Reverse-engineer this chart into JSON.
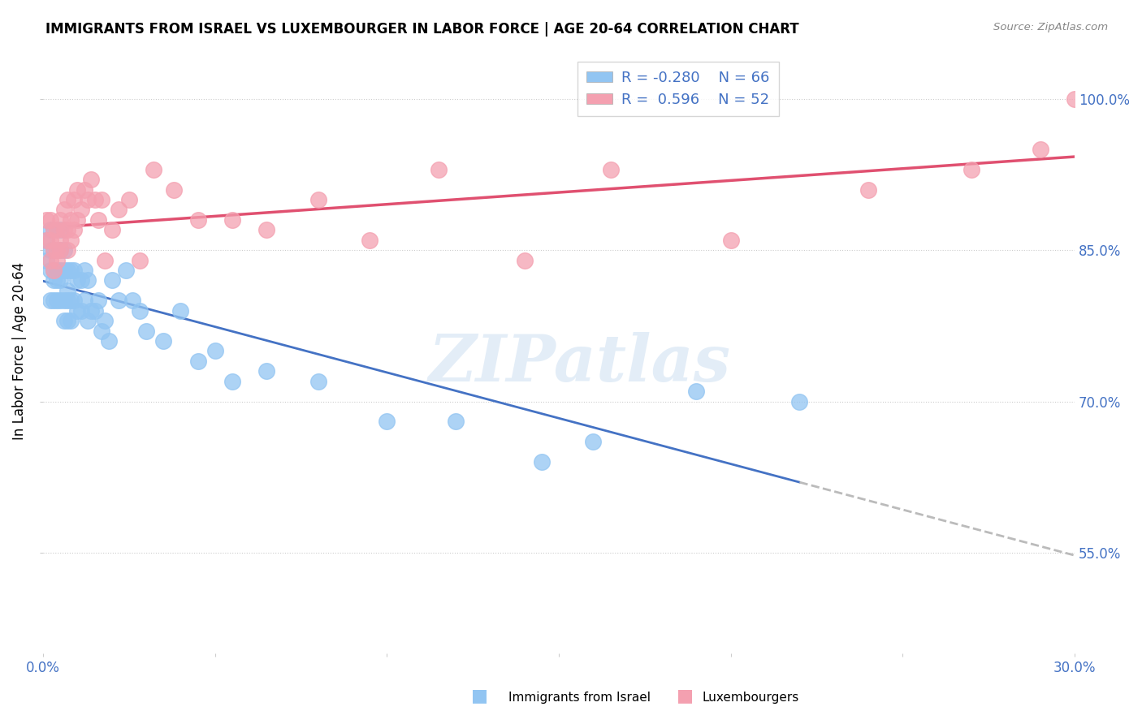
{
  "title": "IMMIGRANTS FROM ISRAEL VS LUXEMBOURGER IN LABOR FORCE | AGE 20-64 CORRELATION CHART",
  "source": "Source: ZipAtlas.com",
  "ylabel": "In Labor Force | Age 20-64",
  "xlim": [
    0.0,
    0.3
  ],
  "ylim": [
    0.45,
    1.05
  ],
  "yticks": [
    0.55,
    0.7,
    0.85,
    1.0
  ],
  "ytick_labels": [
    "55.0%",
    "70.0%",
    "85.0%",
    "100.0%"
  ],
  "xticks": [
    0.0,
    0.05,
    0.1,
    0.15,
    0.2,
    0.25,
    0.3
  ],
  "xtick_labels": [
    "0.0%",
    "",
    "",
    "",
    "",
    "",
    "30.0%"
  ],
  "legend_israel_r": "-0.280",
  "legend_israel_n": "66",
  "legend_lux_r": "0.596",
  "legend_lux_n": "52",
  "color_israel": "#92C5F2",
  "color_lux": "#F4A0B0",
  "color_israel_line": "#4472C4",
  "color_lux_line": "#E05070",
  "color_israel_line_dashed": "#BBBBBB",
  "watermark": "ZIPatlas",
  "israel_x": [
    0.001,
    0.001,
    0.002,
    0.002,
    0.002,
    0.002,
    0.003,
    0.003,
    0.003,
    0.003,
    0.003,
    0.004,
    0.004,
    0.004,
    0.004,
    0.005,
    0.005,
    0.005,
    0.005,
    0.005,
    0.006,
    0.006,
    0.006,
    0.006,
    0.007,
    0.007,
    0.007,
    0.007,
    0.008,
    0.008,
    0.008,
    0.009,
    0.009,
    0.01,
    0.01,
    0.011,
    0.011,
    0.012,
    0.012,
    0.013,
    0.013,
    0.014,
    0.015,
    0.016,
    0.017,
    0.018,
    0.019,
    0.02,
    0.022,
    0.024,
    0.026,
    0.028,
    0.03,
    0.035,
    0.04,
    0.045,
    0.05,
    0.055,
    0.065,
    0.08,
    0.1,
    0.12,
    0.145,
    0.16,
    0.19,
    0.22
  ],
  "israel_y": [
    0.84,
    0.86,
    0.83,
    0.85,
    0.87,
    0.8,
    0.83,
    0.85,
    0.87,
    0.82,
    0.8,
    0.83,
    0.85,
    0.8,
    0.82,
    0.82,
    0.85,
    0.87,
    0.8,
    0.83,
    0.8,
    0.83,
    0.85,
    0.78,
    0.8,
    0.83,
    0.78,
    0.81,
    0.8,
    0.83,
    0.78,
    0.8,
    0.83,
    0.79,
    0.82,
    0.79,
    0.82,
    0.8,
    0.83,
    0.78,
    0.82,
    0.79,
    0.79,
    0.8,
    0.77,
    0.78,
    0.76,
    0.82,
    0.8,
    0.83,
    0.8,
    0.79,
    0.77,
    0.76,
    0.79,
    0.74,
    0.75,
    0.72,
    0.73,
    0.72,
    0.68,
    0.68,
    0.64,
    0.66,
    0.71,
    0.7
  ],
  "lux_x": [
    0.001,
    0.001,
    0.002,
    0.002,
    0.002,
    0.003,
    0.003,
    0.003,
    0.004,
    0.004,
    0.004,
    0.005,
    0.005,
    0.005,
    0.006,
    0.006,
    0.007,
    0.007,
    0.007,
    0.008,
    0.008,
    0.009,
    0.009,
    0.01,
    0.01,
    0.011,
    0.012,
    0.013,
    0.014,
    0.015,
    0.016,
    0.017,
    0.018,
    0.02,
    0.022,
    0.025,
    0.028,
    0.032,
    0.038,
    0.045,
    0.055,
    0.065,
    0.08,
    0.095,
    0.115,
    0.14,
    0.165,
    0.2,
    0.24,
    0.27,
    0.29,
    0.3
  ],
  "lux_y": [
    0.86,
    0.88,
    0.84,
    0.86,
    0.88,
    0.83,
    0.85,
    0.87,
    0.85,
    0.87,
    0.84,
    0.86,
    0.88,
    0.85,
    0.87,
    0.89,
    0.85,
    0.87,
    0.9,
    0.86,
    0.88,
    0.87,
    0.9,
    0.88,
    0.91,
    0.89,
    0.91,
    0.9,
    0.92,
    0.9,
    0.88,
    0.9,
    0.84,
    0.87,
    0.89,
    0.9,
    0.84,
    0.93,
    0.91,
    0.88,
    0.88,
    0.87,
    0.9,
    0.86,
    0.93,
    0.84,
    0.93,
    0.86,
    0.91,
    0.93,
    0.95,
    1.0
  ]
}
